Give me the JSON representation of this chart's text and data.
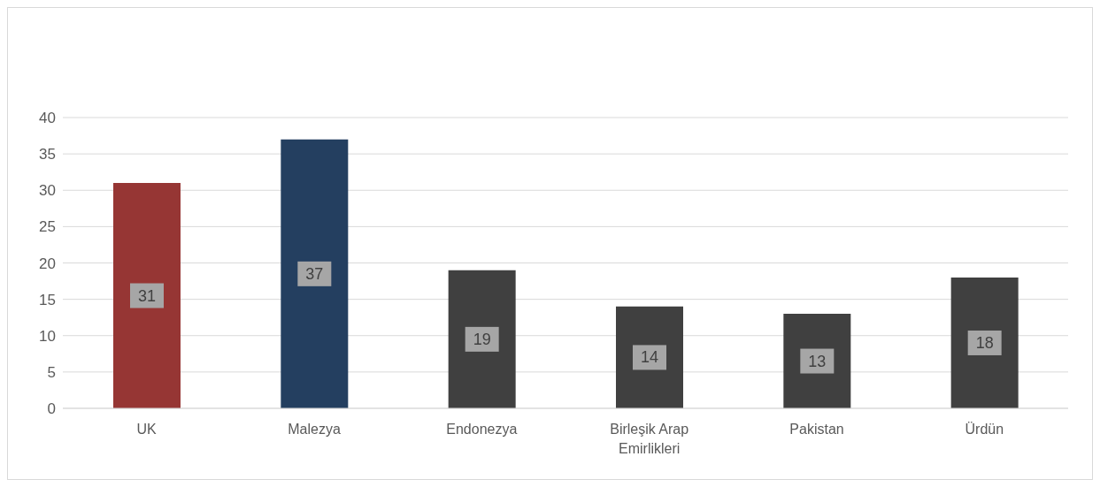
{
  "chart_data": {
    "type": "bar",
    "categories": [
      "UK",
      "Malezya",
      "Endonezya",
      "Birleşik Arap Emirlikleri",
      "Pakistan",
      "Ürdün"
    ],
    "values": [
      31,
      37,
      19,
      14,
      13,
      18
    ],
    "colors": [
      "#963634",
      "#243f60",
      "#404040",
      "#404040",
      "#404040",
      "#404040"
    ],
    "ylim": [
      0,
      40
    ],
    "yticks": [
      0,
      5,
      10,
      15,
      20,
      25,
      30,
      35,
      40
    ],
    "grid": "y",
    "data_labels": true
  }
}
